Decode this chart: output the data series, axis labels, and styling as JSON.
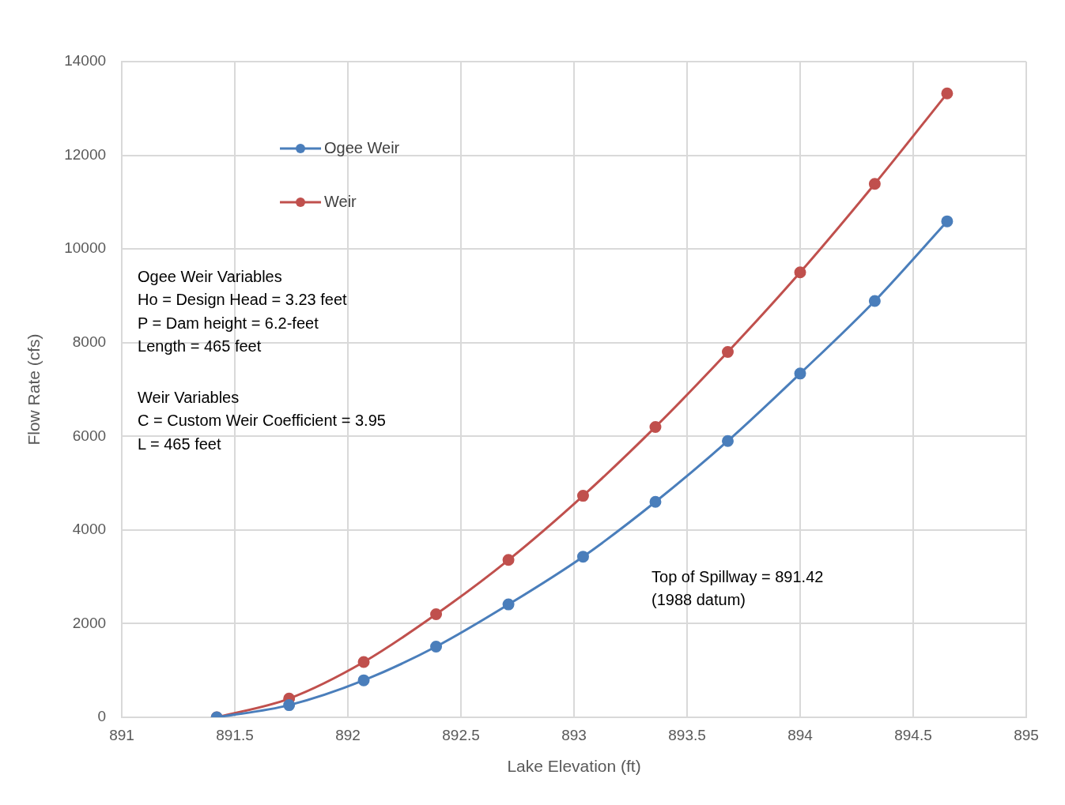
{
  "chart_data": {
    "type": "line",
    "xlabel": "Lake Elevation (ft)",
    "ylabel": "Flow Rate (cfs)",
    "xlim": [
      891,
      895
    ],
    "xticks": [
      891,
      891.5,
      892,
      892.5,
      893,
      893.5,
      894,
      894.5,
      895
    ],
    "ylim": [
      0,
      14000
    ],
    "yticks": [
      0,
      2000,
      4000,
      6000,
      8000,
      10000,
      12000,
      14000
    ],
    "x": [
      891.42,
      891.74,
      892.07,
      892.39,
      892.71,
      893.04,
      893.36,
      893.68,
      894.0,
      894.33,
      894.65
    ],
    "series": [
      {
        "name": "Ogee Weir",
        "color": "#4a7ebb",
        "values": [
          0,
          260,
          790,
          1510,
          2410,
          3430,
          4600,
          5900,
          7340,
          8890,
          10590
        ]
      },
      {
        "name": "Weir",
        "color": "#c0504d",
        "values": [
          0,
          400,
          1180,
          2200,
          3360,
          4730,
          6200,
          7800,
          9500,
          11390,
          13320
        ]
      }
    ],
    "grid": true,
    "legend": "top left",
    "marker": "circle",
    "line_style": "solid",
    "annotations": [
      "Ogee Weir Variables\nHo = Design Head = 3.23 feet\nP = Dam height = 6.2-feet\nLength = 465 feet",
      "Weir Variables\nC = Custom Weir Coefficient = 3.95\nL = 465 feet",
      "Top of Spillway = 891.42\n(1988 datum)"
    ]
  }
}
